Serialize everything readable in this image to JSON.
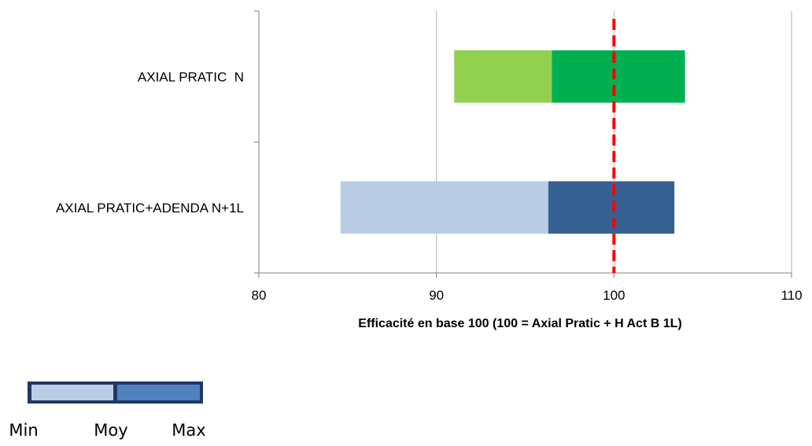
{
  "chart_data": {
    "type": "bar",
    "orientation": "horizontal",
    "stacked": "range",
    "categories": [
      "AXIAL PRATIC  N",
      "AXIAL PRATIC+ADENDA N+1L"
    ],
    "series": [
      {
        "range_min": 91.0,
        "range_moy": 96.5,
        "range_max": 104.0,
        "colors": {
          "min_moy": "#92d050",
          "moy_max": "#00b050"
        }
      },
      {
        "range_min": 84.6,
        "range_moy": 96.3,
        "range_max": 103.4,
        "colors": {
          "min_moy": "#b9cde5",
          "moy_max": "#366092"
        }
      }
    ],
    "x_ticks": [
      80,
      90,
      100,
      110
    ],
    "xlim": [
      80,
      110
    ],
    "reference_line": {
      "value": 100,
      "color": "#ff0000",
      "style": "dashed"
    },
    "xlabel": "Efficacité en base 100 (100 = Axial Pratic + H Act B 1L)",
    "grid": "vertical",
    "legend": {
      "labels": [
        "Min",
        "Moy",
        "Max"
      ],
      "colors": {
        "min_moy": "#b9cde5",
        "moy_max": "#4f81bd",
        "border": "#1f3864"
      }
    }
  }
}
